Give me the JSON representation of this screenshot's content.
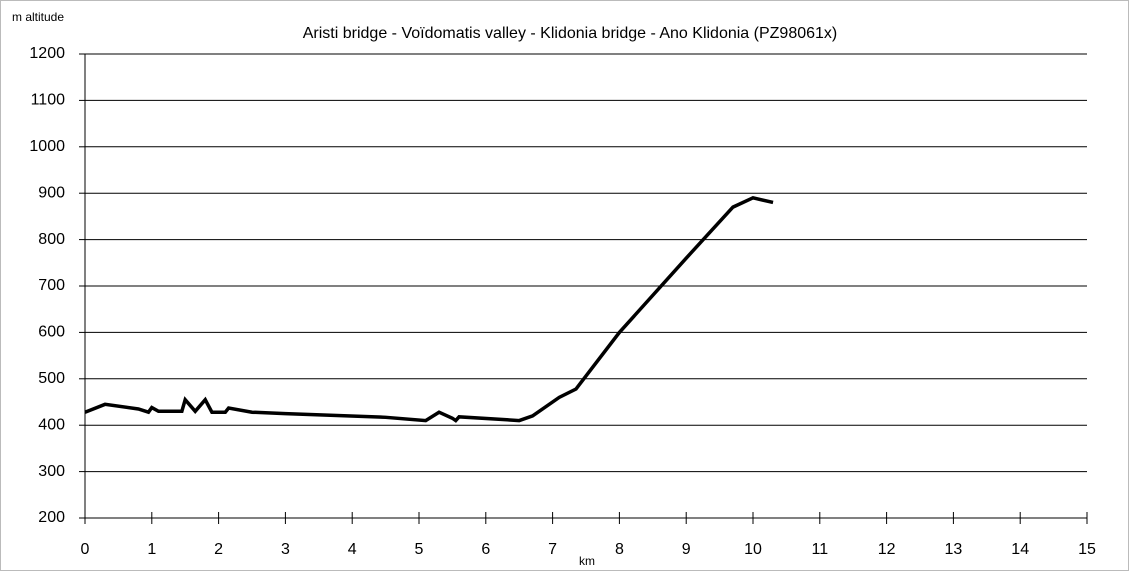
{
  "chart_data": {
    "type": "line",
    "title": "Aristi bridge - Voïdomatis valley - Klidonia bridge - Ano Klidonia (PZ98061x)",
    "y_label": "m altitude",
    "x_label": "km",
    "series": [
      {
        "color": "#000000",
        "x": [
          0,
          0.3,
          0.8,
          0.95,
          1.0,
          1.1,
          1.45,
          1.5,
          1.65,
          1.8,
          1.9,
          2.1,
          2.15,
          2.5,
          3.0,
          4.5,
          5.1,
          5.3,
          5.5,
          5.55,
          5.6,
          6.5,
          6.7,
          7.1,
          7.35,
          8.0,
          9.0,
          9.7,
          10.0,
          10.3
        ],
        "values": [
          428,
          445,
          435,
          428,
          438,
          430,
          430,
          455,
          430,
          455,
          428,
          428,
          437,
          428,
          425,
          417,
          410,
          428,
          415,
          410,
          418,
          410,
          420,
          460,
          478,
          600,
          760,
          870,
          890,
          880
        ]
      }
    ],
    "xlim": [
      0,
      15
    ],
    "xticks": [
      0,
      1,
      2,
      3,
      4,
      5,
      6,
      7,
      8,
      9,
      10,
      11,
      12,
      13,
      14,
      15
    ],
    "ylim": [
      200,
      1200
    ],
    "yticks": [
      200,
      300,
      400,
      500,
      600,
      700,
      800,
      900,
      1000,
      1100,
      1200
    ],
    "grid": true
  }
}
